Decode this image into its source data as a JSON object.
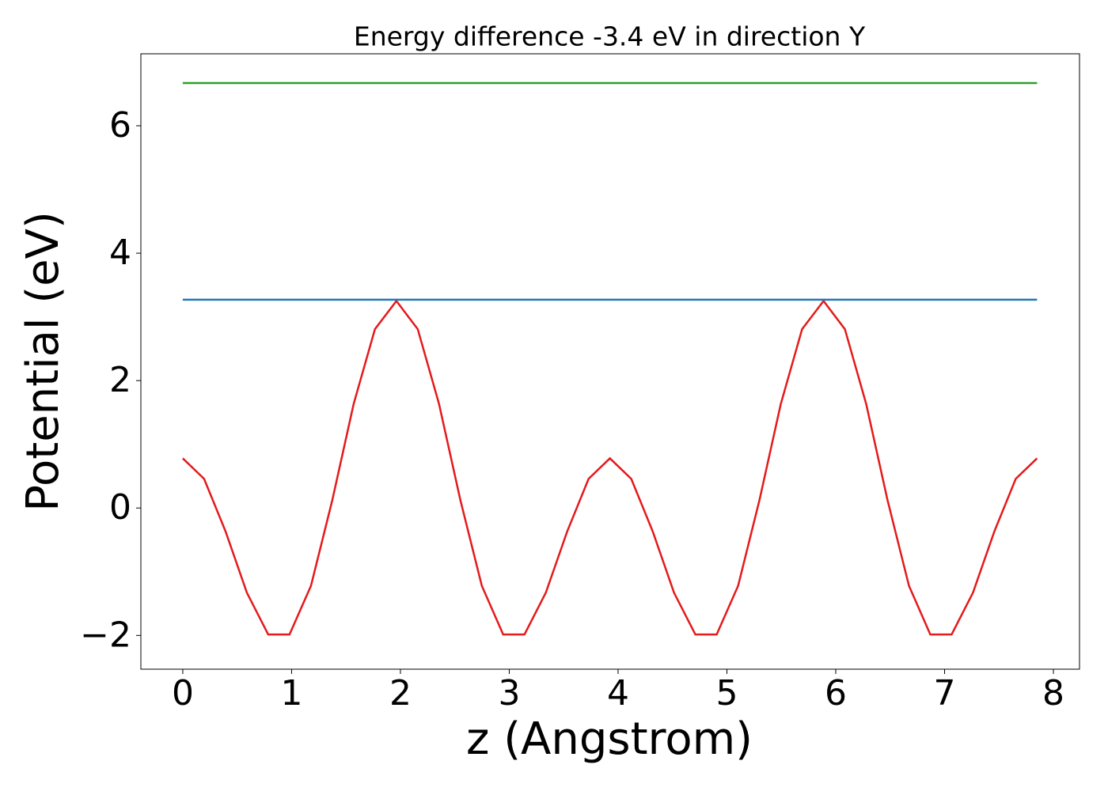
{
  "chart_data": {
    "type": "line",
    "title": "Energy difference -3.4 eV in direction Y",
    "xlabel": "z (Angstrom)",
    "ylabel": "Potential (eV)",
    "xlim": [
      -0.385,
      8.24
    ],
    "ylim": [
      -2.53,
      7.13
    ],
    "xticks": [
      0,
      1,
      2,
      3,
      4,
      5,
      6,
      7,
      8
    ],
    "yticks": [
      {
        "value": -2,
        "label": "−2"
      },
      0,
      2,
      4,
      6
    ],
    "series": [
      {
        "color": "#e41a1c",
        "x": [
          0,
          0.196,
          0.393,
          0.589,
          0.785,
          0.981,
          1.178,
          1.374,
          1.57,
          1.766,
          1.963,
          2.159,
          2.355,
          2.551,
          2.748,
          2.944,
          3.14,
          3.336,
          3.533,
          3.729,
          3.925,
          4.121,
          4.318,
          4.514,
          4.71,
          4.906,
          5.103,
          5.299,
          5.495,
          5.691,
          5.888,
          6.084,
          6.28,
          6.476,
          6.673,
          6.869,
          7.065,
          7.261,
          7.458,
          7.654,
          7.85
        ],
        "values": [
          0.78,
          0.458,
          -0.366,
          -1.329,
          -1.985,
          -1.985,
          -1.221,
          0.123,
          1.632,
          2.808,
          3.25,
          2.808,
          1.632,
          0.123,
          -1.221,
          -1.985,
          -1.985,
          -1.329,
          -0.366,
          0.458,
          0.78,
          0.458,
          -0.366,
          -1.329,
          -1.985,
          -1.985,
          -1.221,
          0.123,
          1.632,
          2.808,
          3.25,
          2.808,
          1.632,
          0.123,
          -1.221,
          -1.985,
          -1.985,
          -1.329,
          -0.366,
          0.458,
          0.78
        ]
      },
      {
        "color": "#1f77b4",
        "x": [
          0,
          7.85
        ],
        "values": [
          3.27,
          3.27
        ]
      },
      {
        "color": "#2ca02c",
        "x": [
          0,
          7.85
        ],
        "values": [
          6.67,
          6.67
        ]
      }
    ]
  }
}
